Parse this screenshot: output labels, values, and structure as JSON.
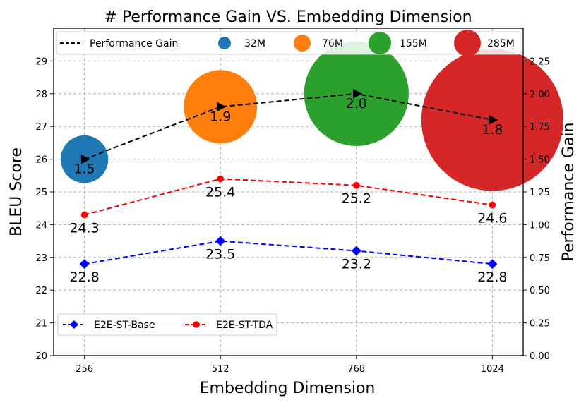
{
  "chart_data": {
    "type": "line",
    "title": "# Performance Gain VS. Embedding Dimension",
    "xlabel": "Embedding Dimension",
    "ylabel": "BLEU Score",
    "y2label": "Performance Gain",
    "categories": [
      "256",
      "512",
      "768",
      "1024"
    ],
    "x": [
      256,
      512,
      768,
      1024
    ],
    "xlim": [
      198,
      1082
    ],
    "ylim": [
      20,
      30
    ],
    "y2lim": [
      0,
      2.5
    ],
    "yticks": [
      "20",
      "21",
      "22",
      "23",
      "24",
      "25",
      "26",
      "27",
      "28",
      "29"
    ],
    "y2ticks": [
      "0.00",
      "0.25",
      "0.50",
      "0.75",
      "1.00",
      "1.25",
      "1.50",
      "1.75",
      "2.00",
      "2.25"
    ],
    "grid": true,
    "series": [
      {
        "name": "E2E-ST-Base",
        "axis": "left",
        "values": [
          22.8,
          23.5,
          23.2,
          22.8
        ],
        "labels": [
          "22.8",
          "23.5",
          "23.2",
          "22.8"
        ],
        "color": "#0000ff",
        "marker": "diamond",
        "linestyle": "dashed"
      },
      {
        "name": "E2E-ST-TDA",
        "axis": "left",
        "values": [
          24.3,
          25.4,
          25.2,
          24.6
        ],
        "labels": [
          "24.3",
          "25.4",
          "25.2",
          "24.6"
        ],
        "color": "#ff0000",
        "marker": "circle",
        "linestyle": "dashed"
      },
      {
        "name": "Performance Gain",
        "axis": "right",
        "values": [
          1.5,
          1.9,
          2.0,
          1.8
        ],
        "labels": [
          "1.5",
          "1.9",
          "2.0",
          "1.8"
        ],
        "color": "#000000",
        "marker": "triangle-right",
        "linestyle": "dashed"
      }
    ],
    "bubbles": [
      {
        "name": "32M",
        "params": 32,
        "x": 256,
        "y": 26.0,
        "color": "#1f77b4"
      },
      {
        "name": "76M",
        "params": 76,
        "x": 512,
        "y": 27.6,
        "color": "#ff7f0e"
      },
      {
        "name": "155M",
        "params": 155,
        "x": 768,
        "y": 28.0,
        "color": "#2ca02c"
      },
      {
        "name": "285M",
        "params": 285,
        "x": 1024,
        "y": 27.2,
        "color": "#d62728"
      }
    ],
    "legend_top": {
      "placement": "top",
      "entries": [
        "Performance Gain",
        "32M",
        "76M",
        "155M",
        "285M"
      ]
    },
    "legend_bottom": {
      "placement": "lower-left",
      "entries": [
        "E2E-ST-Base",
        "E2E-ST-TDA"
      ]
    }
  }
}
